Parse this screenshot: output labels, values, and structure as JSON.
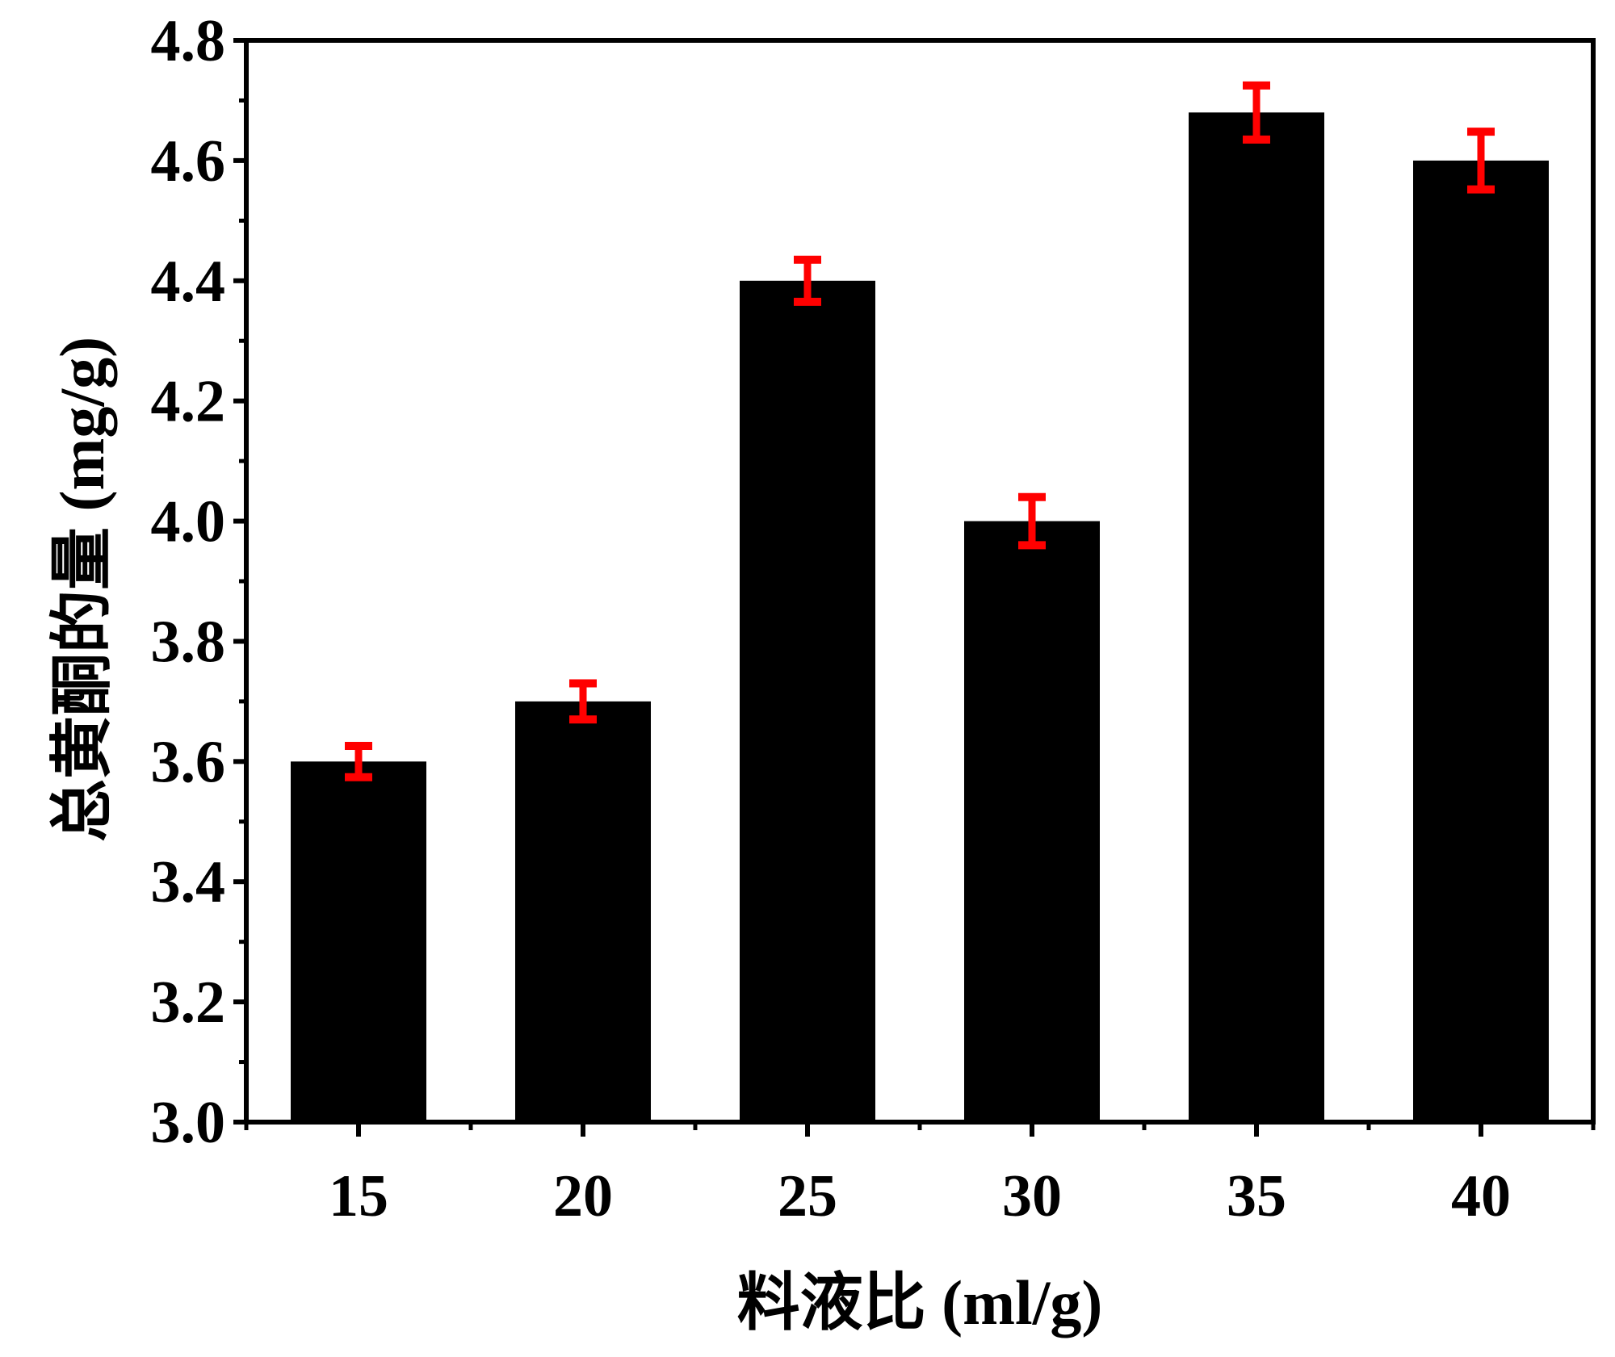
{
  "chart_data": {
    "type": "bar",
    "categories": [
      "15",
      "20",
      "25",
      "30",
      "35",
      "40"
    ],
    "values": [
      3.6,
      3.7,
      4.4,
      4.0,
      4.68,
      4.6
    ],
    "errors": [
      0.026,
      0.03,
      0.035,
      0.04,
      0.045,
      0.048
    ],
    "xlabel": "料液比 (ml/g)",
    "ylabel": "总黄酮的量 (mg/g)",
    "ylim": [
      3.0,
      4.8
    ],
    "yticks": [
      "3.0",
      "3.2",
      "3.4",
      "3.6",
      "3.8",
      "4.0",
      "4.2",
      "4.4",
      "4.6",
      "4.8"
    ],
    "grid": false,
    "legend": "none",
    "colors": {
      "bar": "#000000",
      "error_bar": "#ff0000",
      "axis": "#000000"
    }
  }
}
